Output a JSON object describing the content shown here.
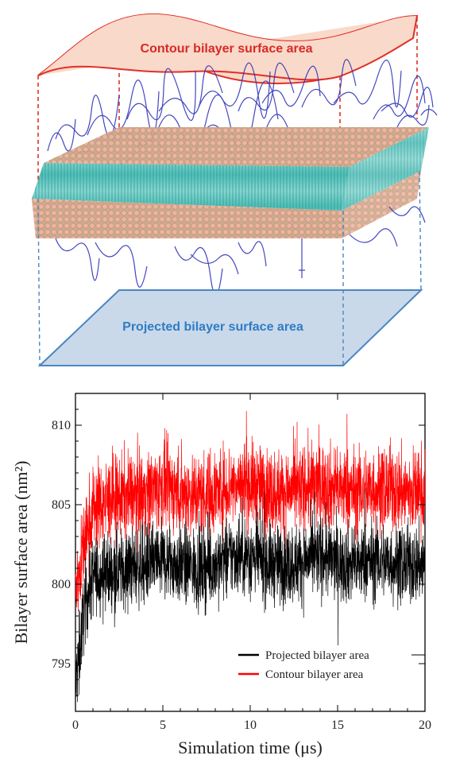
{
  "illustration": {
    "contour_label": "Contour bilayer surface area",
    "projected_label": "Projected bilayer surface area",
    "colors": {
      "contour_line": "#e0302a",
      "contour_fill": "#f9d9c9",
      "contour_text": "#d62b26",
      "projected_line": "#4a86c2",
      "projected_fill": "#c9d9ea",
      "projected_text": "#2f7cc4",
      "lipid_tails": "#58c9c2",
      "lipid_heads": "#e8a38d",
      "polymer": "#2e33b8"
    },
    "icons": [
      "lipid-bilayer-rendering"
    ]
  },
  "chart_data": {
    "type": "line",
    "xlabel": "Simulation time (μs)",
    "ylabel": "Bilayer surface area (nm²)",
    "xlim": [
      0,
      20
    ],
    "ylim": [
      792,
      812
    ],
    "xticks": [
      "0",
      "5",
      "10",
      "15",
      "20"
    ],
    "yticks": [
      "795",
      "800",
      "805",
      "810"
    ],
    "grid": false,
    "legend_position": "bottom-right",
    "series": [
      {
        "name": "Projected bilayer area",
        "color": "#000000",
        "x": [
          0,
          0.5,
          1,
          2,
          3,
          4,
          5,
          6,
          7,
          8,
          9,
          10,
          11,
          12,
          13,
          14,
          15,
          16,
          17,
          18,
          19,
          20
        ],
        "values": [
          793.5,
          798.5,
          800.5,
          800.8,
          801.0,
          801.2,
          801.5,
          801.2,
          801.0,
          801.2,
          801.8,
          801.8,
          801.3,
          801.2,
          801.4,
          801.8,
          801.4,
          801.2,
          801.5,
          801.4,
          801.2,
          801.3
        ]
      },
      {
        "name": "Contour bilayer area",
        "color": "#ff0000",
        "x": [
          0,
          0.5,
          1,
          2,
          3,
          4,
          5,
          6,
          7,
          8,
          9,
          10,
          11,
          12,
          13,
          14,
          15,
          16,
          17,
          18,
          19,
          20
        ],
        "values": [
          799.5,
          802.5,
          804.8,
          805.3,
          805.6,
          805.8,
          806.2,
          805.8,
          805.6,
          805.8,
          806.3,
          806.3,
          805.9,
          805.8,
          806.0,
          806.3,
          806.0,
          805.8,
          806.0,
          806.0,
          805.8,
          805.9
        ]
      }
    ]
  }
}
